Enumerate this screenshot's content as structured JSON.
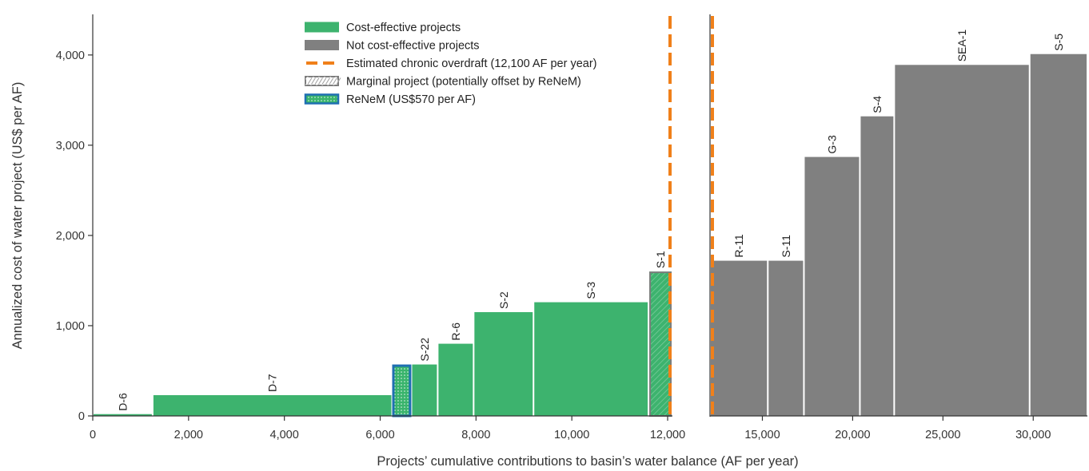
{
  "chart_data": {
    "type": "bar",
    "subtype": "cost-curve (variable-width bars, broken x axis)",
    "xlabel": "Projects’ cumulative contributions to basin’s water balance (AF per year)",
    "ylabel": "Annualized cost of water project (US$ per AF)",
    "ylim": [
      0,
      4450
    ],
    "yticks": [
      0,
      1000,
      2000,
      3000,
      4000
    ],
    "ytick_labels": [
      "0",
      "1,000",
      "2,000",
      "3,000",
      "4,000"
    ],
    "grid": false,
    "legend_position": "top-center",
    "colors": {
      "cost_effective": "#3db36e",
      "not_cost_effective": "#808080",
      "overdraft": "#f0801a",
      "reneem_border": "#1f6fb2",
      "reneem_fill": "#39b46c",
      "axis": "#333333"
    },
    "panels": [
      {
        "xlim": [
          0,
          12100
        ],
        "xticks": [
          0,
          2000,
          4000,
          6000,
          8000,
          10000,
          12000
        ],
        "xtick_labels": [
          "0",
          "2,000",
          "4,000",
          "6,000",
          "8,000",
          "10,000",
          "12,000"
        ]
      },
      {
        "xlim": [
          12100,
          33000
        ],
        "xticks": [
          15000,
          20000,
          25000,
          30000
        ],
        "xtick_labels": [
          "15,000",
          "20,000",
          "25,000",
          "30,000"
        ]
      }
    ],
    "overdraft_x": 12100,
    "bars": [
      {
        "label": "D-6",
        "x0": 0,
        "x1": 1250,
        "cost": 20,
        "category": "cost-effective"
      },
      {
        "label": "D-7",
        "x0": 1250,
        "x1": 6250,
        "cost": 230,
        "category": "cost-effective"
      },
      {
        "label": "",
        "x0": 6250,
        "x1": 6650,
        "cost": 570,
        "category": "reneem"
      },
      {
        "label": "S-22",
        "x0": 6650,
        "x1": 7200,
        "cost": 570,
        "category": "cost-effective"
      },
      {
        "label": "R-6",
        "x0": 7200,
        "x1": 7950,
        "cost": 800,
        "category": "cost-effective"
      },
      {
        "label": "S-2",
        "x0": 7950,
        "x1": 9200,
        "cost": 1150,
        "category": "cost-effective"
      },
      {
        "label": "S-3",
        "x0": 9200,
        "x1": 11600,
        "cost": 1260,
        "category": "cost-effective"
      },
      {
        "label": "S-1",
        "x0": 11600,
        "x1": 12100,
        "cost": 1600,
        "category": "marginal"
      },
      {
        "label": "R-11",
        "x0": 12100,
        "x1": 15300,
        "cost": 1720,
        "category": "not-cost-effective"
      },
      {
        "label": "S-11",
        "x0": 15300,
        "x1": 17300,
        "cost": 1720,
        "category": "not-cost-effective"
      },
      {
        "label": "G-3",
        "x0": 17300,
        "x1": 20400,
        "cost": 2870,
        "category": "not-cost-effective"
      },
      {
        "label": "S-4",
        "x0": 20400,
        "x1": 22300,
        "cost": 3320,
        "category": "not-cost-effective"
      },
      {
        "label": "SEA-1",
        "x0": 22300,
        "x1": 29800,
        "cost": 3890,
        "category": "not-cost-effective"
      },
      {
        "label": "S-5",
        "x0": 29800,
        "x1": 33000,
        "cost": 4010,
        "category": "not-cost-effective"
      }
    ],
    "legend": [
      {
        "key": "cost-effective",
        "label": "Cost-effective projects"
      },
      {
        "key": "not-cost-effective",
        "label": "Not cost-effective projects"
      },
      {
        "key": "overdraft",
        "label": "Estimated chronic overdraft (12,100 AF per year)"
      },
      {
        "key": "marginal",
        "label": "Marginal project (potentially offset by ReNeM)"
      },
      {
        "key": "reneem",
        "label": "ReNeM (US$570 per AF)"
      }
    ]
  }
}
